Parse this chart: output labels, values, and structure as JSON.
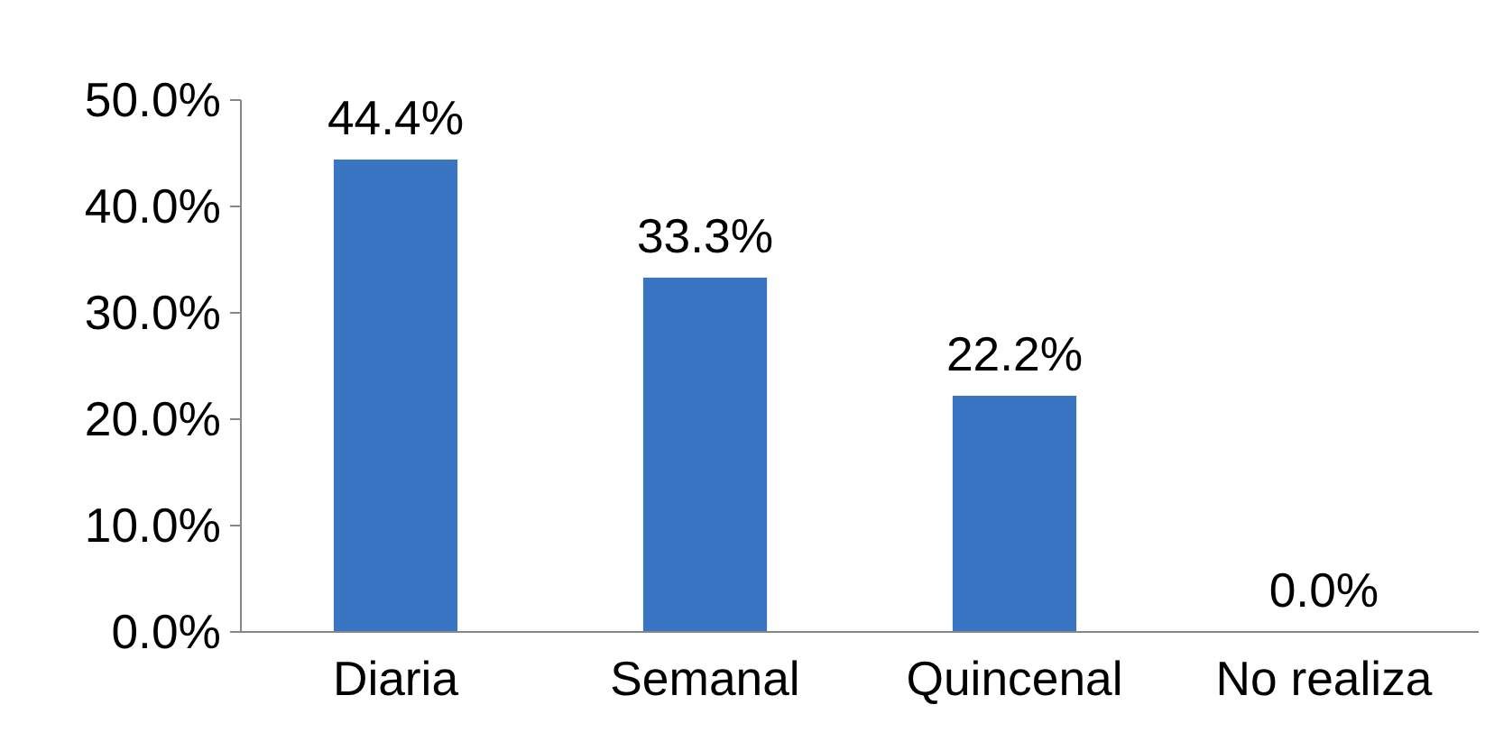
{
  "chart_data": {
    "type": "bar",
    "categories": [
      "Diaria",
      "Semanal",
      "Quincenal",
      "No realiza"
    ],
    "values": [
      44.4,
      33.3,
      22.2,
      0.0
    ],
    "color": "#3a75c4",
    "ylim": [
      0,
      50
    ],
    "yticks": [
      {
        "value": 0,
        "label": "0.0%"
      },
      {
        "value": 10,
        "label": "10.0%"
      },
      {
        "value": 20,
        "label": "20.0%"
      },
      {
        "value": 30,
        "label": "30.0%"
      },
      {
        "value": 40,
        "label": "40.0%"
      },
      {
        "value": 50,
        "label": "50.0%"
      }
    ],
    "value_labels": [
      "44.4%",
      "33.3%",
      "22.2%",
      "0.0%"
    ],
    "grid": false
  }
}
